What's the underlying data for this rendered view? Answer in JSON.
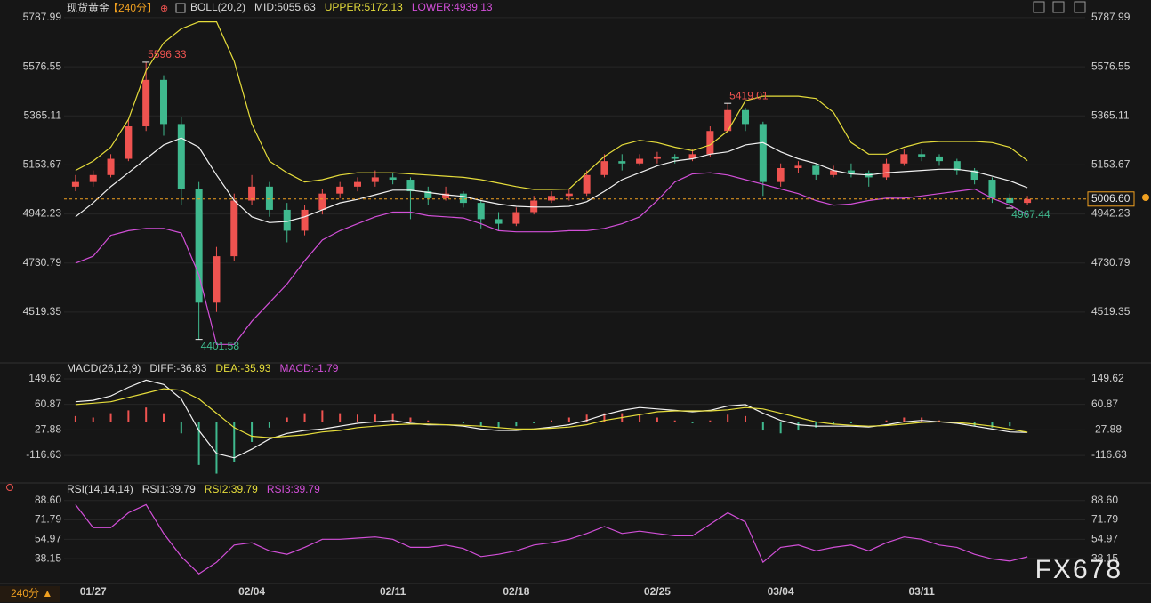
{
  "chart_data": [
    {
      "type": "candlestick",
      "title": "现货黄金",
      "period": "【240分】",
      "legend": [
        {
          "text": "BOLL(20,2)",
          "color": "#d8d8d8"
        },
        {
          "text": "MID:5055.63",
          "color": "#d8d8d8"
        },
        {
          "text": "UPPER:5172.13",
          "color": "#e6dd3b"
        },
        {
          "text": "LOWER:4939.13",
          "color": "#d24fd8"
        }
      ],
      "categories": [
        null,
        "01/27",
        null,
        null,
        null,
        null,
        null,
        null,
        null,
        null,
        "02/04",
        null,
        null,
        null,
        null,
        null,
        null,
        null,
        "02/11",
        null,
        null,
        null,
        null,
        null,
        null,
        "02/18",
        null,
        null,
        null,
        null,
        null,
        null,
        null,
        "02/25",
        null,
        null,
        null,
        null,
        null,
        null,
        "03/04",
        null,
        null,
        null,
        null,
        null,
        null,
        null,
        "03/11",
        null,
        null,
        null,
        null,
        null,
        null
      ],
      "up_color": "#ef5350",
      "down_color": "#3fb98e",
      "candles": [
        [
          5060,
          5110,
          5040,
          5080
        ],
        [
          5080,
          5130,
          5060,
          5110
        ],
        [
          5110,
          5200,
          5100,
          5180
        ],
        [
          5180,
          5350,
          5170,
          5320
        ],
        [
          5320,
          5596.33,
          5300,
          5520
        ],
        [
          5520,
          5540,
          5280,
          5330
        ],
        [
          5330,
          5360,
          4980,
          5050
        ],
        [
          5050,
          5080,
          4401.58,
          4560
        ],
        [
          4560,
          4800,
          4520,
          4760
        ],
        [
          4760,
          5030,
          4740,
          5000
        ],
        [
          5000,
          5110,
          4980,
          5060
        ],
        [
          5060,
          5080,
          4930,
          4960
        ],
        [
          4960,
          4990,
          4820,
          4870
        ],
        [
          4870,
          4980,
          4850,
          4960
        ],
        [
          4960,
          5050,
          4940,
          5030
        ],
        [
          5030,
          5080,
          5010,
          5060
        ],
        [
          5060,
          5100,
          5040,
          5080
        ],
        [
          5080,
          5130,
          5060,
          5100
        ],
        [
          5100,
          5120,
          5070,
          5090
        ],
        [
          5090,
          5100,
          4920,
          5040
        ],
        [
          5040,
          5060,
          4980,
          5010
        ],
        [
          5010,
          5060,
          5000,
          5030
        ],
        [
          5030,
          5040,
          4970,
          4990
        ],
        [
          4990,
          5000,
          4880,
          4920
        ],
        [
          4920,
          4950,
          4870,
          4900
        ],
        [
          4900,
          4970,
          4890,
          4950
        ],
        [
          4950,
          5020,
          4940,
          5000
        ],
        [
          5000,
          5040,
          4990,
          5020
        ],
        [
          5020,
          5050,
          5000,
          5030
        ],
        [
          5030,
          5130,
          5020,
          5110
        ],
        [
          5110,
          5200,
          5100,
          5170
        ],
        [
          5170,
          5200,
          5130,
          5160
        ],
        [
          5160,
          5200,
          5150,
          5180
        ],
        [
          5180,
          5210,
          5160,
          5190
        ],
        [
          5190,
          5200,
          5160,
          5180
        ],
        [
          5180,
          5220,
          5170,
          5200
        ],
        [
          5200,
          5320,
          5190,
          5300
        ],
        [
          5300,
          5419.01,
          5290,
          5390
        ],
        [
          5390,
          5400,
          5300,
          5330
        ],
        [
          5330,
          5340,
          5020,
          5080
        ],
        [
          5080,
          5160,
          5060,
          5140
        ],
        [
          5140,
          5170,
          5120,
          5150
        ],
        [
          5150,
          5160,
          5090,
          5110
        ],
        [
          5110,
          5150,
          5100,
          5130
        ],
        [
          5130,
          5160,
          5100,
          5120
        ],
        [
          5120,
          5130,
          5060,
          5100
        ],
        [
          5100,
          5180,
          5090,
          5160
        ],
        [
          5160,
          5220,
          5150,
          5200
        ],
        [
          5200,
          5220,
          5170,
          5190
        ],
        [
          5190,
          5200,
          5150,
          5170
        ],
        [
          5170,
          5180,
          5110,
          5130
        ],
        [
          5130,
          5140,
          5070,
          5090
        ],
        [
          5090,
          5100,
          4990,
          5010
        ],
        [
          5010,
          5030,
          4967.44,
          4990
        ],
        [
          4990,
          5020,
          4980,
          5006.6
        ]
      ],
      "series": [
        {
          "name": "UPPER",
          "color": "#e6dd3b",
          "values": [
            5130,
            5170,
            5230,
            5350,
            5560,
            5680,
            5740,
            5770,
            5770,
            5600,
            5330,
            5170,
            5120,
            5080,
            5090,
            5110,
            5120,
            5120,
            5120,
            5115,
            5110,
            5105,
            5100,
            5090,
            5075,
            5060,
            5048,
            5048,
            5050,
            5120,
            5190,
            5240,
            5260,
            5250,
            5230,
            5215,
            5240,
            5300,
            5430,
            5450,
            5450,
            5450,
            5440,
            5380,
            5250,
            5200,
            5200,
            5230,
            5250,
            5255,
            5255,
            5255,
            5250,
            5230,
            5172.13
          ]
        },
        {
          "name": "MID",
          "color": "#f2f2f2",
          "values": [
            4930,
            4990,
            5060,
            5120,
            5180,
            5240,
            5270,
            5230,
            5110,
            5000,
            4930,
            4905,
            4910,
            4930,
            4960,
            4990,
            5005,
            5025,
            5045,
            5045,
            5035,
            5025,
            5018,
            5000,
            4985,
            4975,
            4972,
            4972,
            4975,
            4995,
            5040,
            5090,
            5120,
            5150,
            5170,
            5180,
            5200,
            5210,
            5240,
            5250,
            5210,
            5180,
            5160,
            5130,
            5115,
            5110,
            5120,
            5125,
            5130,
            5135,
            5135,
            5125,
            5105,
            5085,
            5055.63
          ]
        },
        {
          "name": "LOWER",
          "color": "#d24fd8",
          "values": [
            4730,
            4760,
            4850,
            4870,
            4880,
            4880,
            4860,
            4680,
            4380,
            4380,
            4480,
            4560,
            4640,
            4740,
            4830,
            4870,
            4900,
            4930,
            4950,
            4950,
            4935,
            4930,
            4925,
            4900,
            4870,
            4865,
            4865,
            4865,
            4870,
            4870,
            4880,
            4900,
            4930,
            5000,
            5080,
            5115,
            5120,
            5110,
            5090,
            5070,
            5050,
            5030,
            5000,
            4980,
            4985,
            5000,
            5010,
            5010,
            5020,
            5030,
            5040,
            5050,
            5010,
            4980,
            4939.13
          ]
        }
      ],
      "last_price": {
        "value": 5006.6,
        "label": "5006.60"
      },
      "last_price_color": "#f0a020",
      "ylim": [
        4312,
        5826
      ],
      "yticks": [
        5787.99,
        5576.55,
        5365.11,
        5153.67,
        4942.23,
        4730.79,
        4519.35
      ],
      "grid": true
    },
    {
      "type": "macd",
      "legend": [
        {
          "text": "MACD(26,12,9)",
          "color": "#d8d8d8"
        },
        {
          "text": "DIFF:-36.83",
          "color": "#d8d8d8"
        },
        {
          "text": "DEA:-35.93",
          "color": "#e6dd3b"
        },
        {
          "text": "MACD:-1.79",
          "color": "#d24fd8"
        }
      ],
      "series": [
        {
          "name": "DIFF",
          "color": "#f2f2f2",
          "values": [
            70,
            75,
            90,
            120,
            145,
            130,
            80,
            -30,
            -110,
            -125,
            -95,
            -60,
            -40,
            -30,
            -25,
            -15,
            -5,
            0,
            5,
            -5,
            -10,
            -10,
            -15,
            -25,
            -30,
            -30,
            -25,
            -18,
            -10,
            5,
            25,
            40,
            50,
            45,
            40,
            35,
            40,
            55,
            60,
            30,
            5,
            -10,
            -15,
            -15,
            -15,
            -18,
            -10,
            0,
            5,
            0,
            -5,
            -15,
            -25,
            -35,
            -36.83
          ]
        },
        {
          "name": "DEA",
          "color": "#e6dd3b",
          "values": [
            60,
            65,
            70,
            85,
            100,
            115,
            110,
            80,
            30,
            -20,
            -50,
            -55,
            -50,
            -45,
            -35,
            -30,
            -20,
            -15,
            -10,
            -8,
            -8,
            -10,
            -12,
            -15,
            -20,
            -25,
            -25,
            -22,
            -18,
            -10,
            5,
            15,
            25,
            35,
            38,
            38,
            38,
            42,
            50,
            45,
            30,
            15,
            0,
            -8,
            -12,
            -15,
            -13,
            -8,
            -2,
            0,
            -2,
            -8,
            -15,
            -25,
            -35.93
          ]
        }
      ],
      "histogram": [
        20,
        15,
        30,
        40,
        50,
        30,
        -40,
        -150,
        -180,
        -140,
        -70,
        -20,
        15,
        30,
        40,
        30,
        25,
        25,
        30,
        15,
        5,
        0,
        -5,
        -15,
        -20,
        -15,
        -5,
        5,
        15,
        25,
        30,
        30,
        25,
        15,
        5,
        -5,
        5,
        25,
        20,
        -30,
        -40,
        -30,
        -20,
        -10,
        -5,
        0,
        5,
        15,
        15,
        5,
        -5,
        -15,
        -20,
        -15,
        -1.79
      ],
      "up_color": "#ef5350",
      "down_color": "#3fb98e",
      "ylim": [
        -203,
        168
      ],
      "yticks": [
        149.62,
        60.87,
        -27.88,
        -116.63
      ],
      "grid": true
    },
    {
      "type": "line",
      "legend": [
        {
          "text": "RSI(14,14,14)",
          "color": "#d8d8d8"
        },
        {
          "text": "RSI1:39.79",
          "color": "#d8d8d8"
        },
        {
          "text": "RSI2:39.79",
          "color": "#e6dd3b"
        }
      ],
      "series": [
        {
          "name": "RSI3:39.79",
          "color": "#d24fd8",
          "values": [
            85,
            65,
            65,
            78,
            85,
            60,
            40,
            25,
            35,
            50,
            52,
            45,
            42,
            48,
            55,
            55,
            56,
            57,
            55,
            48,
            48,
            50,
            47,
            40,
            42,
            45,
            50,
            52,
            55,
            60,
            66,
            60,
            62,
            60,
            58,
            58,
            68,
            78,
            70,
            35,
            48,
            50,
            45,
            48,
            50,
            45,
            52,
            57,
            55,
            50,
            48,
            42,
            38,
            36,
            39.79
          ]
        }
      ],
      "ylim": [
        19,
        93
      ],
      "yticks": [
        {
          "value": 88.6,
          "label": "88.60"
        },
        71.79,
        54.97,
        38.15
      ],
      "grid": true
    }
  ],
  "footer": {
    "period": "240分 ▲",
    "watermark": "FX678"
  }
}
